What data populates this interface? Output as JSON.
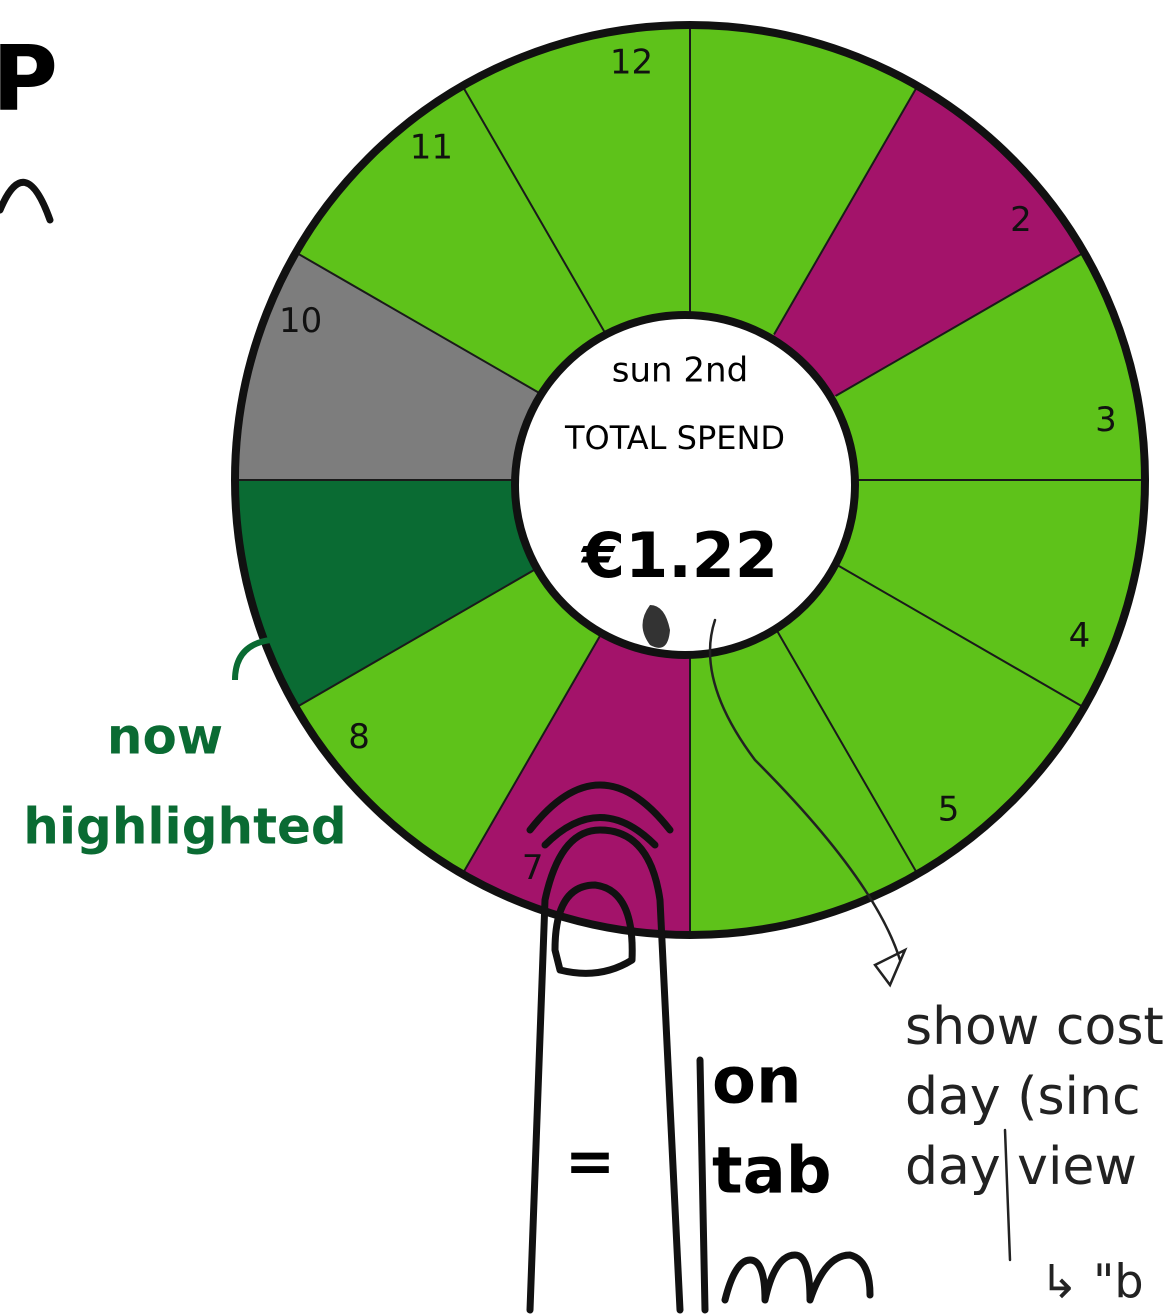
{
  "corner_mark": "P",
  "wheel": {
    "hour_labels": [
      "12",
      "2",
      "3",
      "4",
      "5",
      "7",
      "8",
      "10",
      "11"
    ],
    "center": {
      "date": "sun 2nd",
      "label": "TOTAL SPEND",
      "amount": "€1.22"
    }
  },
  "annotations": {
    "highlight_note": [
      "now",
      "highlighted"
    ],
    "tap_note": [
      "on",
      "tab"
    ],
    "equals": "=",
    "detail_note": [
      "show cost",
      "day (sinc",
      "day view",
      "↳ \"b"
    ]
  }
}
